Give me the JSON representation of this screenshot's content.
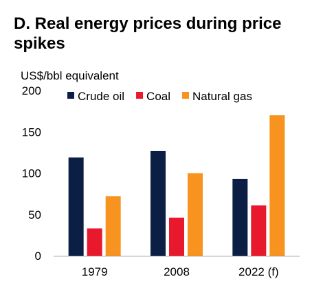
{
  "chart_data": {
    "type": "bar",
    "title": "D. Real energy prices during price spikes",
    "ylabel": "US$/bbl equivalent",
    "xlabel": "",
    "categories": [
      "1979",
      "2008",
      "2022 (f)"
    ],
    "series": [
      {
        "name": "Crude oil",
        "color": "#0b1f44",
        "values": [
          119,
          127,
          93
        ]
      },
      {
        "name": "Coal",
        "color": "#e8192c",
        "values": [
          33,
          46,
          61
        ]
      },
      {
        "name": "Natural gas",
        "color": "#f7931e",
        "values": [
          72,
          100,
          170
        ]
      }
    ],
    "ylim": [
      0,
      200
    ],
    "yticks": [
      "0",
      "50",
      "100",
      "150",
      "200"
    ],
    "grid": false,
    "legend_position": "top"
  }
}
